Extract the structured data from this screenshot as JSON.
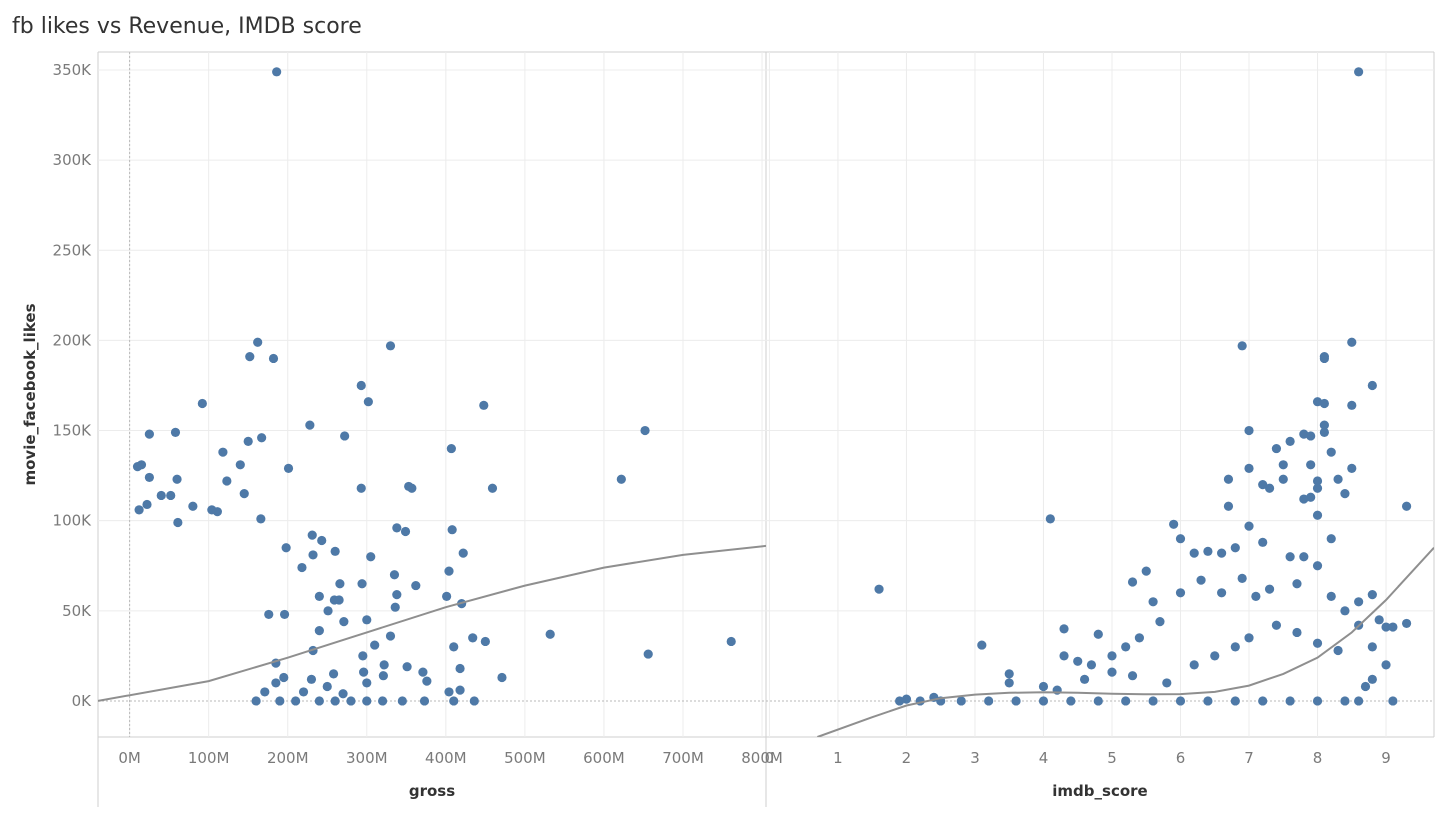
{
  "title": "fb likes vs Revenue, IMDB score",
  "colors": {
    "point": "#4e79a7",
    "trend": "#8f8f8f",
    "grid": "#ececec",
    "frame": "#cfcfcf"
  },
  "chart_data": [
    {
      "type": "scatter",
      "title": "fb likes vs Revenue, IMDB score",
      "xlabel": "gross",
      "ylabel": "movie_facebook_likes",
      "xlim": [
        -40000000,
        805000000
      ],
      "ylim": [
        -20000,
        360000
      ],
      "x_ticks": [
        0,
        100000000,
        200000000,
        300000000,
        400000000,
        500000000,
        600000000,
        700000000,
        800000000
      ],
      "x_tick_labels": [
        "0M",
        "100M",
        "200M",
        "300M",
        "400M",
        "500M",
        "600M",
        "700M",
        "800M"
      ],
      "y_ticks": [
        0,
        50000,
        100000,
        150000,
        200000,
        250000,
        300000,
        350000
      ],
      "y_tick_labels": [
        "0K",
        "50K",
        "100K",
        "150K",
        "200K",
        "250K",
        "300K",
        "350K"
      ],
      "trend": {
        "type": "polynomial-2",
        "x": [
          -40000000,
          100000000,
          200000000,
          300000000,
          400000000,
          500000000,
          600000000,
          700000000,
          805000000
        ],
        "y": [
          0,
          11000,
          24000,
          38000,
          52000,
          64000,
          74000,
          81000,
          86000
        ]
      },
      "points": [
        [
          186000000,
          349000
        ],
        [
          162000000,
          199000
        ],
        [
          152000000,
          191000
        ],
        [
          182000000,
          190000
        ],
        [
          330000000,
          197000
        ],
        [
          293000000,
          175000
        ],
        [
          302000000,
          166000
        ],
        [
          92000000,
          165000
        ],
        [
          448000000,
          164000
        ],
        [
          652000000,
          150000
        ],
        [
          150000000,
          144000
        ],
        [
          167000000,
          146000
        ],
        [
          228000000,
          153000
        ],
        [
          272000000,
          147000
        ],
        [
          58000000,
          149000
        ],
        [
          25000000,
          148000
        ],
        [
          118000000,
          138000
        ],
        [
          407000000,
          140000
        ],
        [
          140000000,
          131000
        ],
        [
          201000000,
          129000
        ],
        [
          10000000,
          130000
        ],
        [
          15000000,
          131000
        ],
        [
          25000000,
          124000
        ],
        [
          60000000,
          123000
        ],
        [
          622000000,
          123000
        ],
        [
          123000000,
          122000
        ],
        [
          145000000,
          115000
        ],
        [
          293000000,
          118000
        ],
        [
          353000000,
          119000
        ],
        [
          357000000,
          118000
        ],
        [
          459000000,
          118000
        ],
        [
          40000000,
          114000
        ],
        [
          52000000,
          114000
        ],
        [
          22000000,
          109000
        ],
        [
          80000000,
          108000
        ],
        [
          104000000,
          106000
        ],
        [
          111000000,
          105000
        ],
        [
          12000000,
          106000
        ],
        [
          166000000,
          101000
        ],
        [
          61000000,
          99000
        ],
        [
          338000000,
          96000
        ],
        [
          408000000,
          95000
        ],
        [
          349000000,
          94000
        ],
        [
          231000000,
          92000
        ],
        [
          243000000,
          89000
        ],
        [
          198000000,
          85000
        ],
        [
          305000000,
          80000
        ],
        [
          422000000,
          82000
        ],
        [
          232000000,
          81000
        ],
        [
          260000000,
          83000
        ],
        [
          218000000,
          74000
        ],
        [
          404000000,
          72000
        ],
        [
          335000000,
          70000
        ],
        [
          294000000,
          65000
        ],
        [
          362000000,
          64000
        ],
        [
          266000000,
          65000
        ],
        [
          338000000,
          59000
        ],
        [
          401000000,
          58000
        ],
        [
          240000000,
          58000
        ],
        [
          259000000,
          56000
        ],
        [
          265000000,
          56000
        ],
        [
          420000000,
          54000
        ],
        [
          336000000,
          52000
        ],
        [
          176000000,
          48000
        ],
        [
          196000000,
          48000
        ],
        [
          251000000,
          50000
        ],
        [
          300000000,
          45000
        ],
        [
          271000000,
          44000
        ],
        [
          532000000,
          37000
        ],
        [
          450000000,
          33000
        ],
        [
          434000000,
          35000
        ],
        [
          410000000,
          30000
        ],
        [
          330000000,
          36000
        ],
        [
          240000000,
          39000
        ],
        [
          310000000,
          31000
        ],
        [
          656000000,
          26000
        ],
        [
          761000000,
          33000
        ],
        [
          471000000,
          13000
        ],
        [
          371000000,
          16000
        ],
        [
          376000000,
          11000
        ],
        [
          321000000,
          14000
        ],
        [
          295000000,
          25000
        ],
        [
          322000000,
          20000
        ],
        [
          296000000,
          16000
        ],
        [
          351000000,
          19000
        ],
        [
          300000000,
          10000
        ],
        [
          258000000,
          15000
        ],
        [
          230000000,
          12000
        ],
        [
          232000000,
          28000
        ],
        [
          185000000,
          21000
        ],
        [
          185000000,
          10000
        ],
        [
          171000000,
          5000
        ],
        [
          195000000,
          13000
        ],
        [
          220000000,
          5000
        ],
        [
          250000000,
          8000
        ],
        [
          270000000,
          4000
        ],
        [
          300000000,
          0
        ],
        [
          320000000,
          0
        ],
        [
          345000000,
          0
        ],
        [
          373000000,
          0
        ],
        [
          410000000,
          0
        ],
        [
          436000000,
          0
        ],
        [
          404000000,
          5000
        ],
        [
          418000000,
          6000
        ],
        [
          418000000,
          18000
        ],
        [
          190000000,
          0
        ],
        [
          210000000,
          0
        ],
        [
          240000000,
          0
        ],
        [
          260000000,
          0
        ],
        [
          280000000,
          0
        ],
        [
          160000000,
          0
        ]
      ]
    },
    {
      "type": "scatter",
      "title": "",
      "xlabel": "imdb_score",
      "ylabel": "movie_facebook_likes",
      "xlim": [
        -0.05,
        9.7
      ],
      "ylim": [
        -20000,
        360000
      ],
      "x_ticks": [
        0,
        1,
        2,
        3,
        4,
        5,
        6,
        7,
        8,
        9
      ],
      "x_tick_labels": [
        "0",
        "1",
        "2",
        "3",
        "4",
        "5",
        "6",
        "7",
        "8",
        "9"
      ],
      "y_ticks": [
        0,
        50000,
        100000,
        150000,
        200000,
        250000,
        300000,
        350000
      ],
      "trend": {
        "type": "polynomial-3",
        "x": [
          0.7,
          1.5,
          2.0,
          2.5,
          3.0,
          3.5,
          4.0,
          4.5,
          5.0,
          5.5,
          6.0,
          6.5,
          7.0,
          7.5,
          8.0,
          8.5,
          9.0,
          9.7
        ],
        "y": [
          -20000,
          -9000,
          -2500,
          1500,
          3500,
          4500,
          4800,
          4600,
          4000,
          3700,
          3800,
          5000,
          8500,
          15000,
          24000,
          38000,
          56000,
          85000
        ]
      },
      "points": [
        [
          8.6,
          349000
        ],
        [
          6.9,
          197000
        ],
        [
          8.5,
          199000
        ],
        [
          8.1,
          191000
        ],
        [
          8.1,
          190000
        ],
        [
          8.8,
          175000
        ],
        [
          8.0,
          166000
        ],
        [
          8.1,
          165000
        ],
        [
          8.5,
          164000
        ],
        [
          7.0,
          150000
        ],
        [
          7.8,
          148000
        ],
        [
          8.1,
          153000
        ],
        [
          7.6,
          144000
        ],
        [
          7.9,
          147000
        ],
        [
          8.1,
          149000
        ],
        [
          7.4,
          140000
        ],
        [
          8.2,
          138000
        ],
        [
          7.9,
          131000
        ],
        [
          7.5,
          131000
        ],
        [
          7.0,
          129000
        ],
        [
          8.5,
          129000
        ],
        [
          8.0,
          122000
        ],
        [
          8.0,
          118000
        ],
        [
          8.3,
          123000
        ],
        [
          7.3,
          118000
        ],
        [
          7.5,
          123000
        ],
        [
          7.2,
          120000
        ],
        [
          6.7,
          123000
        ],
        [
          7.9,
          113000
        ],
        [
          8.4,
          115000
        ],
        [
          9.3,
          108000
        ],
        [
          7.8,
          112000
        ],
        [
          6.7,
          108000
        ],
        [
          4.1,
          101000
        ],
        [
          5.9,
          98000
        ],
        [
          6.0,
          90000
        ],
        [
          7.0,
          97000
        ],
        [
          6.8,
          85000
        ],
        [
          8.0,
          103000
        ],
        [
          8.2,
          90000
        ],
        [
          1.6,
          62000
        ],
        [
          3.1,
          31000
        ],
        [
          4.3,
          40000
        ],
        [
          4.3,
          25000
        ],
        [
          4.8,
          37000
        ],
        [
          5.3,
          66000
        ],
        [
          5.5,
          72000
        ],
        [
          5.6,
          55000
        ],
        [
          6.2,
          82000
        ],
        [
          6.4,
          83000
        ],
        [
          6.6,
          82000
        ],
        [
          7.2,
          88000
        ],
        [
          7.6,
          80000
        ],
        [
          7.8,
          80000
        ],
        [
          8.0,
          75000
        ],
        [
          8.6,
          55000
        ],
        [
          8.8,
          59000
        ],
        [
          8.9,
          45000
        ],
        [
          9.0,
          41000
        ],
        [
          9.1,
          41000
        ],
        [
          9.3,
          43000
        ],
        [
          9.1,
          0
        ],
        [
          4.5,
          22000
        ],
        [
          4.7,
          20000
        ],
        [
          5.0,
          25000
        ],
        [
          5.2,
          30000
        ],
        [
          5.4,
          35000
        ],
        [
          5.7,
          44000
        ],
        [
          6.0,
          60000
        ],
        [
          6.3,
          67000
        ],
        [
          6.6,
          60000
        ],
        [
          6.9,
          68000
        ],
        [
          7.1,
          58000
        ],
        [
          7.3,
          62000
        ],
        [
          7.7,
          65000
        ],
        [
          8.2,
          58000
        ],
        [
          8.4,
          50000
        ],
        [
          8.6,
          42000
        ],
        [
          8.8,
          30000
        ],
        [
          9.0,
          20000
        ],
        [
          8.8,
          12000
        ],
        [
          8.7,
          8000
        ],
        [
          8.6,
          0
        ],
        [
          3.5,
          15000
        ],
        [
          3.5,
          10000
        ],
        [
          4.0,
          8000
        ],
        [
          4.2,
          6000
        ],
        [
          4.6,
          12000
        ],
        [
          5.0,
          16000
        ],
        [
          5.3,
          14000
        ],
        [
          5.8,
          10000
        ],
        [
          6.2,
          20000
        ],
        [
          6.5,
          25000
        ],
        [
          6.8,
          30000
        ],
        [
          7.0,
          35000
        ],
        [
          7.4,
          42000
        ],
        [
          7.7,
          38000
        ],
        [
          8.0,
          32000
        ],
        [
          8.3,
          28000
        ],
        [
          2.4,
          2000
        ],
        [
          2.0,
          1000
        ],
        [
          1.9,
          0
        ],
        [
          2.2,
          0
        ],
        [
          2.5,
          0
        ],
        [
          2.8,
          0
        ],
        [
          3.2,
          0
        ],
        [
          3.6,
          0
        ],
        [
          4.0,
          0
        ],
        [
          4.4,
          0
        ],
        [
          4.8,
          0
        ],
        [
          5.2,
          0
        ],
        [
          5.6,
          0
        ],
        [
          6.0,
          0
        ],
        [
          6.4,
          0
        ],
        [
          6.8,
          0
        ],
        [
          7.2,
          0
        ],
        [
          7.6,
          0
        ],
        [
          8.0,
          0
        ],
        [
          8.4,
          0
        ]
      ]
    }
  ]
}
